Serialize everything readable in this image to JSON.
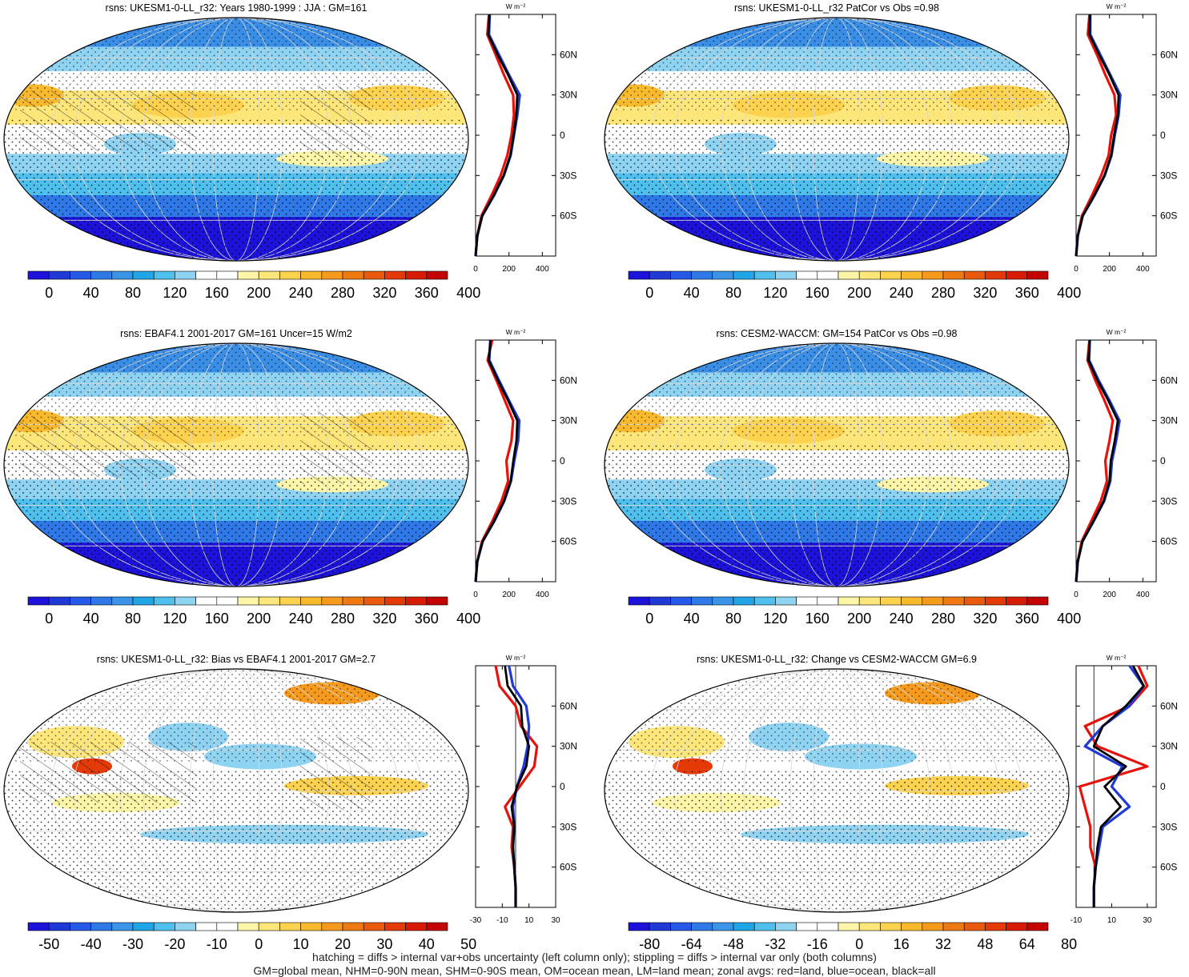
{
  "figure": {
    "footer_lines": [
      "hatching = diffs > internal var+obs uncertainty (left column only); stippling = diffs > internal var only (both columns)",
      "GM=global mean, NHM=0-90N mean, SHM=0-90S mean, OM=ocean mean, LM=land mean; zonal avgs: red=land, blue=ocean, black=all"
    ],
    "profile_unit": "W m⁻²",
    "latitude_ticks": [
      "60N",
      "30N",
      "0",
      "30S",
      "60S"
    ],
    "latitude_values": [
      60,
      30,
      0,
      -30,
      -60
    ]
  },
  "panels": [
    {
      "id": "ukesm-clim",
      "title": "rsns: UKESM1-0-LL_r32: Years 1980-1999 : JJA : GM=161",
      "kind": "clim",
      "hatching": true,
      "colorbar_labels": [
        "0",
        "40",
        "80",
        "120",
        "160",
        "200",
        "240",
        "280",
        "320",
        "360",
        "400"
      ],
      "profile_ticks": [
        "0",
        "200",
        "400"
      ]
    },
    {
      "id": "cesm-patcor",
      "title": "rsns: UKESM1-0-LL_r32 PatCor vs Obs =0.98",
      "kind": "clim",
      "hatching": false,
      "colorbar_labels": [
        "0",
        "40",
        "80",
        "120",
        "160",
        "200",
        "240",
        "280",
        "320",
        "360",
        "400"
      ],
      "profile_ticks": [
        "0",
        "200",
        "400"
      ]
    },
    {
      "id": "ebaf-clim",
      "title": "rsns: EBAF4.1 2001-2017 GM=161 Uncer=15 W/m2",
      "kind": "clim",
      "hatching": true,
      "colorbar_labels": [
        "0",
        "40",
        "80",
        "120",
        "160",
        "200",
        "240",
        "280",
        "320",
        "360",
        "400"
      ],
      "profile_ticks": [
        "0",
        "200",
        "400"
      ]
    },
    {
      "id": "cesm-clim",
      "title": "rsns: CESM2-WACCM: GM=154 PatCor vs Obs =0.98",
      "kind": "clim",
      "hatching": false,
      "colorbar_labels": [
        "0",
        "40",
        "80",
        "120",
        "160",
        "200",
        "240",
        "280",
        "320",
        "360",
        "400"
      ],
      "profile_ticks": [
        "0",
        "200",
        "400"
      ]
    },
    {
      "id": "ukesm-bias",
      "title": "rsns: UKESM1-0-LL_r32: Bias vs EBAF4.1 2001-2017 GM=2.7",
      "kind": "bias",
      "hatching": true,
      "colorbar_labels": [
        "-50",
        "-40",
        "-30",
        "-20",
        "-10",
        "0",
        "10",
        "20",
        "30",
        "40",
        "50"
      ],
      "profile_ticks": [
        "-30",
        "-10",
        "10",
        "30"
      ]
    },
    {
      "id": "ukesm-change",
      "title": "rsns: UKESM1-0-LL_r32: Change vs CESM2-WACCM GM=6.9",
      "kind": "change",
      "hatching": false,
      "colorbar_labels": [
        "-80",
        "-64",
        "-48",
        "-32",
        "-16",
        "0",
        "16",
        "32",
        "48",
        "64",
        "80"
      ],
      "profile_ticks": [
        "-10",
        "10",
        "30"
      ]
    }
  ],
  "chart_data": [
    {
      "type": "line",
      "title": "rsns: UKESM1-0-LL_r32: Years 1980-1999 : JJA : GM=161",
      "xlabel": "W m-2",
      "ylabel": "",
      "xlim": [
        0,
        480
      ],
      "ylim": [
        -90,
        90
      ],
      "y": [
        -90,
        -75,
        -60,
        -45,
        -30,
        -15,
        0,
        15,
        30,
        45,
        60,
        75,
        90
      ],
      "series": [
        {
          "name": "land",
          "color": "#e8120c",
          "x": [
            0,
            10,
            35,
            95,
            150,
            190,
            215,
            230,
            225,
            170,
            120,
            70,
            80
          ]
        },
        {
          "name": "ocean",
          "color": "#1f3ad6",
          "x": [
            0,
            10,
            40,
            110,
            170,
            210,
            230,
            250,
            265,
            200,
            140,
            80,
            85
          ]
        },
        {
          "name": "all",
          "color": "#000000",
          "x": [
            0,
            10,
            40,
            108,
            168,
            208,
            228,
            244,
            250,
            195,
            132,
            76,
            83
          ]
        }
      ]
    },
    {
      "type": "line",
      "title": "rsns: UKESM1-0-LL_r32 PatCor vs Obs =0.98",
      "xlabel": "W m-2",
      "ylabel": "",
      "xlim": [
        0,
        480
      ],
      "ylim": [
        -90,
        90
      ],
      "y": [
        -90,
        -75,
        -60,
        -45,
        -30,
        -15,
        0,
        15,
        30,
        45,
        60,
        75,
        90
      ],
      "series": [
        {
          "name": "land",
          "color": "#e8120c",
          "x": [
            0,
            10,
            35,
            95,
            150,
            195,
            210,
            240,
            230,
            175,
            125,
            70,
            80
          ]
        },
        {
          "name": "ocean",
          "color": "#1f3ad6",
          "x": [
            0,
            10,
            40,
            110,
            172,
            212,
            232,
            255,
            265,
            205,
            145,
            85,
            85
          ]
        },
        {
          "name": "all",
          "color": "#000000",
          "x": [
            0,
            10,
            40,
            108,
            170,
            210,
            228,
            250,
            255,
            200,
            138,
            80,
            83
          ]
        }
      ]
    },
    {
      "type": "line",
      "title": "rsns: EBAF4.1 2001-2017 GM=161 Uncer=15 W/m2",
      "xlabel": "W m-2",
      "ylabel": "",
      "xlim": [
        0,
        480
      ],
      "ylim": [
        -90,
        90
      ],
      "y": [
        -90,
        -75,
        -60,
        -45,
        -30,
        -15,
        0,
        15,
        30,
        45,
        60,
        75,
        90
      ],
      "series": [
        {
          "name": "land",
          "color": "#e8120c",
          "x": [
            0,
            10,
            38,
            100,
            155,
            195,
            185,
            215,
            225,
            175,
            125,
            72,
            100
          ]
        },
        {
          "name": "ocean",
          "color": "#1f3ad6",
          "x": [
            0,
            10,
            42,
            112,
            172,
            212,
            232,
            255,
            262,
            200,
            140,
            82,
            88
          ]
        },
        {
          "name": "all",
          "color": "#000000",
          "x": [
            0,
            10,
            42,
            110,
            170,
            210,
            226,
            245,
            250,
            195,
            134,
            78,
            90
          ]
        }
      ]
    },
    {
      "type": "line",
      "title": "rsns: CESM2-WACCM: GM=154 PatCor vs Obs =0.98",
      "xlabel": "W m-2",
      "ylabel": "",
      "xlim": [
        0,
        480
      ],
      "ylim": [
        -90,
        90
      ],
      "y": [
        -90,
        -75,
        -60,
        -45,
        -30,
        -15,
        0,
        15,
        30,
        45,
        60,
        75,
        90
      ],
      "series": [
        {
          "name": "land",
          "color": "#e8120c",
          "x": [
            0,
            10,
            33,
            90,
            148,
            185,
            175,
            200,
            220,
            170,
            115,
            68,
            80
          ]
        },
        {
          "name": "ocean",
          "color": "#1f3ad6",
          "x": [
            0,
            10,
            38,
            105,
            168,
            205,
            215,
            240,
            260,
            200,
            135,
            78,
            82
          ]
        },
        {
          "name": "all",
          "color": "#000000",
          "x": [
            0,
            10,
            38,
            103,
            165,
            200,
            208,
            232,
            250,
            193,
            128,
            74,
            82
          ]
        }
      ]
    },
    {
      "type": "line",
      "title": "rsns: UKESM1-0-LL_r32: Bias vs EBAF4.1 2001-2017 GM=2.7",
      "xlabel": "W m-2",
      "ylabel": "",
      "xlim": [
        -30,
        30
      ],
      "ylim": [
        -90,
        90
      ],
      "y": [
        -90,
        -75,
        -60,
        -45,
        -30,
        -15,
        0,
        15,
        30,
        45,
        60,
        75,
        90
      ],
      "series": [
        {
          "name": "land",
          "color": "#e8120c",
          "x": [
            0,
            0,
            -1,
            -3,
            -2,
            -8,
            3,
            14,
            16,
            4,
            0,
            -12,
            -15
          ]
        },
        {
          "name": "ocean",
          "color": "#1f3ad6",
          "x": [
            0,
            0,
            -1,
            -2,
            -1,
            -2,
            1,
            6,
            9,
            10,
            8,
            -2,
            -5
          ]
        },
        {
          "name": "all",
          "color": "#000000",
          "x": [
            0,
            0,
            -1,
            -2,
            -1,
            -3,
            1,
            8,
            10,
            5,
            4,
            -6,
            -8
          ]
        }
      ]
    },
    {
      "type": "line",
      "title": "rsns: UKESM1-0-LL_r32: Change vs CESM2-WACCM GM=6.9",
      "xlabel": "W m-2",
      "ylabel": "",
      "xlim": [
        -10,
        35
      ],
      "ylim": [
        -90,
        90
      ],
      "y": [
        -90,
        -75,
        -60,
        -45,
        -30,
        -15,
        0,
        15,
        30,
        45,
        60,
        75,
        90
      ],
      "series": [
        {
          "name": "land",
          "color": "#e8120c",
          "x": [
            0,
            0,
            1,
            -2,
            -2,
            -5,
            -8,
            30,
            2,
            -5,
            20,
            30,
            25
          ]
        },
        {
          "name": "ocean",
          "color": "#1f3ad6",
          "x": [
            0,
            0,
            1,
            3,
            5,
            20,
            10,
            16,
            -5,
            5,
            20,
            28,
            20
          ]
        },
        {
          "name": "all",
          "color": "#000000",
          "x": [
            0,
            0,
            1,
            2,
            4,
            15,
            6,
            18,
            0,
            5,
            18,
            28,
            22
          ]
        }
      ]
    }
  ]
}
